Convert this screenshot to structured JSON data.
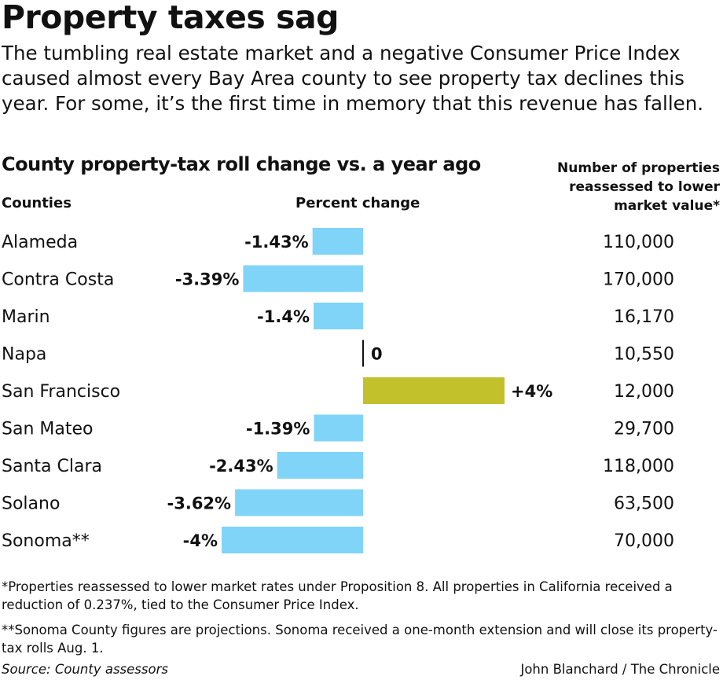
{
  "header": {
    "title": "Property taxes sag",
    "intro": "The tumbling real estate market and a negative Consumer Price Index caused almost every Bay Area county to see property tax declines this year. For some, it’s the first time in memory that this revenue has fallen."
  },
  "chart_data": {
    "type": "bar",
    "title": "County property-tax roll change vs. a year ago",
    "category_header": "Counties",
    "value_header": "Percent change",
    "extra_header": "Number of properties reassessed to lower market value*",
    "categories": [
      "Alameda",
      "Contra Costa",
      "Marin",
      "Napa",
      "San Francisco",
      "San Mateo",
      "Santa Clara",
      "Solano",
      "Sonoma**"
    ],
    "values": [
      -1.43,
      -3.39,
      -1.4,
      0,
      4,
      -1.39,
      -2.43,
      -3.62,
      -4
    ],
    "value_labels": [
      "-1.43%",
      "-3.39%",
      "-1.4%",
      "0",
      "+4%",
      "-1.39%",
      "-2.43%",
      "-3.62%",
      "-4%"
    ],
    "extra_values": [
      "110,000",
      "170,000",
      "16,170",
      "10,550",
      "12,000",
      "29,700",
      "118,000",
      "63,500",
      "70,000"
    ],
    "xlim": [
      -4,
      4
    ],
    "colors": {
      "negative": "#7fd4f8",
      "positive": "#c3c12b",
      "zero_line": "#111111"
    }
  },
  "footnotes": {
    "note1": "*Properties reassessed to lower market rates under Proposition 8. All properties in California received a reduction of 0.237%, tied to the Consumer Price Index.",
    "note2": "**Sonoma County figures are projections. Sonoma received a one-month extension and will close its property-tax rolls Aug. 1.",
    "source": "Source: County assessors",
    "credit": "John Blanchard / The Chronicle"
  }
}
